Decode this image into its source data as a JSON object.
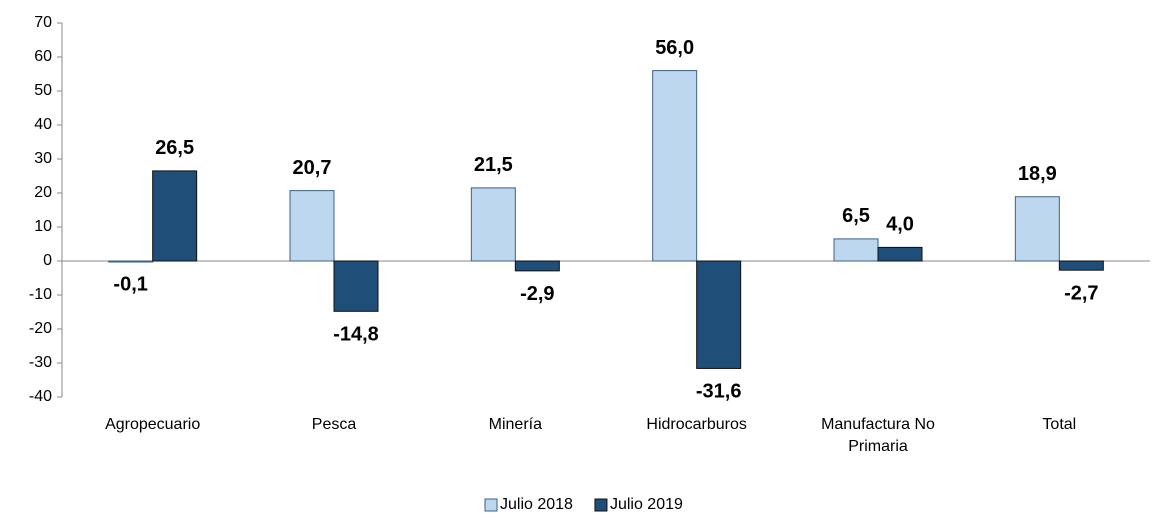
{
  "chart_data": {
    "type": "bar",
    "categories": [
      "Agropecuario",
      "Pesca",
      "Minería",
      "Hidrocarburos",
      "Manufactura No Primaria",
      "Total"
    ],
    "series": [
      {
        "name": "Julio 2018",
        "color": "#bdd7ee",
        "values": [
          -0.1,
          20.7,
          21.5,
          56.0,
          6.5,
          18.9
        ],
        "value_labels": [
          "-0,1",
          "20,7",
          "21,5",
          "56,0",
          "6,5",
          "18,9"
        ]
      },
      {
        "name": "Julio 2019",
        "color": "#1f4e79",
        "values": [
          26.5,
          -14.8,
          -2.9,
          -31.6,
          4.0,
          -2.7
        ],
        "value_labels": [
          "26,5",
          "-14,8",
          "-2,9",
          "-31,6",
          "4,0",
          "-2,7"
        ]
      }
    ],
    "ylim": [
      -40,
      70
    ],
    "yticks": [
      -40,
      -30,
      -20,
      -10,
      0,
      10,
      20,
      30,
      40,
      50,
      60,
      70
    ],
    "legend": "bottom"
  }
}
